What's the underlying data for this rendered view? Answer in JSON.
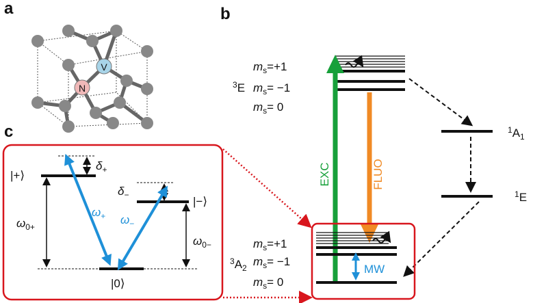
{
  "panel_a": {
    "label": "a",
    "atoms": [
      "N",
      "V"
    ]
  },
  "panel_b": {
    "label": "b",
    "triplet_excited": {
      "sup": "3",
      "name": "E",
      "symbol": "m",
      "sub": "s",
      "levels": [
        "=+1",
        "= −1",
        "= 0"
      ]
    },
    "triplet_ground": {
      "name": "A",
      "sup": "3",
      "sub": "2",
      "symbol": "m",
      "msub": "s",
      "levels": [
        "=+1",
        "= −1",
        "= 0"
      ]
    },
    "singlet_upper": {
      "sup": "1",
      "name": "A",
      "sub": "1"
    },
    "singlet_lower": {
      "sup": "1",
      "name": "E"
    },
    "excitation": "EXC",
    "fluorescence": "FLUO",
    "microwave": "MW"
  },
  "panel_c": {
    "label": "c",
    "state_plus": "|+⟩",
    "state_minus": "|−⟩",
    "state_zero": "|0⟩",
    "delta_plus": {
      "base": "δ",
      "sub": "+"
    },
    "delta_minus": {
      "base": "δ",
      "sub": "−"
    },
    "omega_plus": {
      "base": "ω",
      "sub": "+"
    },
    "omega_minus": {
      "base": "ω",
      "sub": "−"
    },
    "omega_0plus": {
      "base": "ω",
      "sub": "0+"
    },
    "omega_0minus": {
      "base": "ω",
      "sub": "0−"
    }
  }
}
